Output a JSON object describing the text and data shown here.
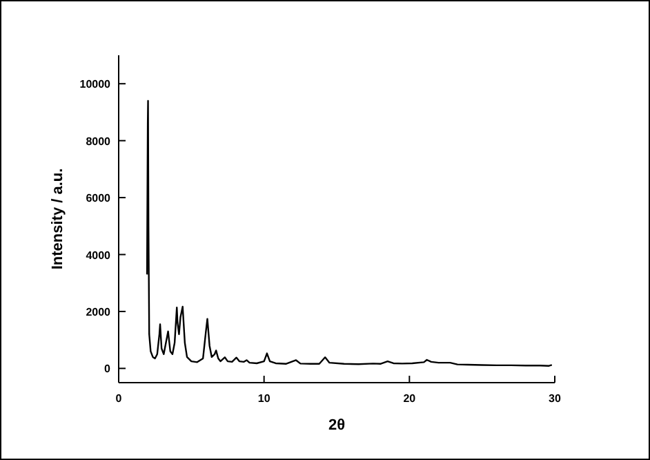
{
  "chart_data": {
    "type": "line",
    "xlabel": "2θ",
    "ylabel": "Intensity / a.u.",
    "xlim": [
      0,
      30
    ],
    "ylim": [
      -500,
      11000
    ],
    "xticks": [
      0,
      10,
      20,
      30
    ],
    "yticks": [
      0,
      2000,
      4000,
      6000,
      8000,
      10000
    ],
    "grid": false,
    "marker": "none",
    "line_style": "solid",
    "series": [
      {
        "color": "#000000",
        "x": [
          1.95,
          2.0,
          2.02,
          2.05,
          2.1,
          2.2,
          2.35,
          2.5,
          2.65,
          2.8,
          2.85,
          2.95,
          3.1,
          3.25,
          3.4,
          3.55,
          3.7,
          3.85,
          4.0,
          4.05,
          4.15,
          4.25,
          4.4,
          4.55,
          4.7,
          5.0,
          5.4,
          5.8,
          6.0,
          6.1,
          6.25,
          6.4,
          6.6,
          6.7,
          6.85,
          7.0,
          7.3,
          7.5,
          7.8,
          8.1,
          8.3,
          8.6,
          8.8,
          9.0,
          9.5,
          10.0,
          10.2,
          10.4,
          10.8,
          11.5,
          12.2,
          12.5,
          13.2,
          13.8,
          14.2,
          14.5,
          15.5,
          16.5,
          17.5,
          18.0,
          18.5,
          18.9,
          19.5,
          20.2,
          21.0,
          21.2,
          21.5,
          22.0,
          22.8,
          23.3,
          24.0,
          25.0,
          26.0,
          27.0,
          28.0,
          29.0,
          29.6,
          29.8
        ],
        "values": [
          3300,
          8600,
          9400,
          5000,
          1200,
          600,
          400,
          350,
          500,
          1200,
          1550,
          700,
          500,
          900,
          1300,
          600,
          500,
          900,
          2140,
          1600,
          1200,
          1800,
          2170,
          900,
          400,
          250,
          220,
          350,
          1300,
          1740,
          800,
          400,
          500,
          630,
          350,
          250,
          390,
          250,
          230,
          380,
          250,
          230,
          290,
          200,
          180,
          250,
          530,
          250,
          180,
          160,
          290,
          170,
          160,
          160,
          390,
          200,
          160,
          150,
          170,
          160,
          250,
          180,
          170,
          180,
          220,
          300,
          230,
          200,
          200,
          140,
          130,
          120,
          110,
          110,
          100,
          100,
          90,
          120
        ]
      }
    ]
  }
}
